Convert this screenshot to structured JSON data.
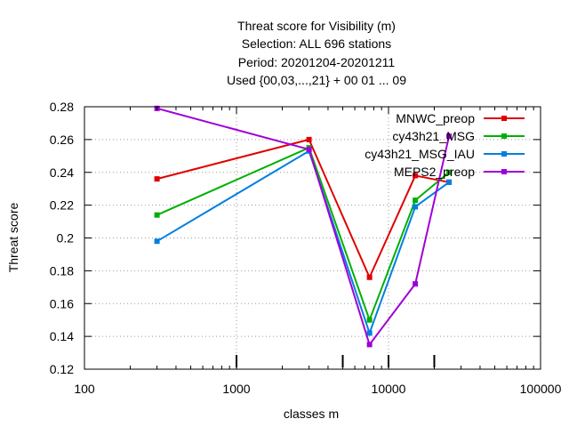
{
  "chart_data": {
    "type": "line",
    "title_lines": [
      "Threat score  for Visibility (m)",
      "Selection: ALL    696 stations",
      "Period: 20201204-20201211",
      "Used {00,03,...,21} + 00 01 ... 09"
    ],
    "xlabel": "classes m",
    "ylabel": "Threat score",
    "x_scale": "log",
    "xlim": [
      100,
      100000
    ],
    "ylim": [
      0.12,
      0.28
    ],
    "x_ticks": [
      100,
      1000,
      10000,
      100000
    ],
    "x_tick_labels": [
      "100",
      "1000",
      "10000",
      "100000"
    ],
    "y_ticks": [
      0.12,
      0.14,
      0.16,
      0.18,
      0.2,
      0.22,
      0.24,
      0.26,
      0.28
    ],
    "y_tick_labels": [
      "0.12",
      "0.14",
      "0.16",
      "0.18",
      "0.2",
      "0.22",
      "0.24",
      "0.26",
      "0.28"
    ],
    "grid": true,
    "legend_position": "top-right",
    "extra_x_marks": [
      1000,
      5000,
      10000,
      20000
    ],
    "series": [
      {
        "name": "MNWC_preop",
        "color": "#e00000",
        "x": [
          300,
          3000,
          7500,
          15000,
          25000
        ],
        "y": [
          0.236,
          0.26,
          0.176,
          0.238,
          0.234
        ]
      },
      {
        "name": "cy43h21_MSG",
        "color": "#00b000",
        "x": [
          300,
          3000,
          7500,
          15000,
          25000
        ],
        "y": [
          0.214,
          0.255,
          0.15,
          0.223,
          0.24
        ]
      },
      {
        "name": "cy43h21_MSG_IAU",
        "color": "#0080e0",
        "x": [
          300,
          3000,
          7500,
          15000,
          25000
        ],
        "y": [
          0.198,
          0.253,
          0.142,
          0.219,
          0.234
        ]
      },
      {
        "name": "MEPS2_preop",
        "color": "#a000d8",
        "x": [
          300,
          3000,
          7500,
          15000,
          25000
        ],
        "y": [
          0.279,
          0.254,
          0.135,
          0.172,
          0.262
        ]
      }
    ]
  }
}
